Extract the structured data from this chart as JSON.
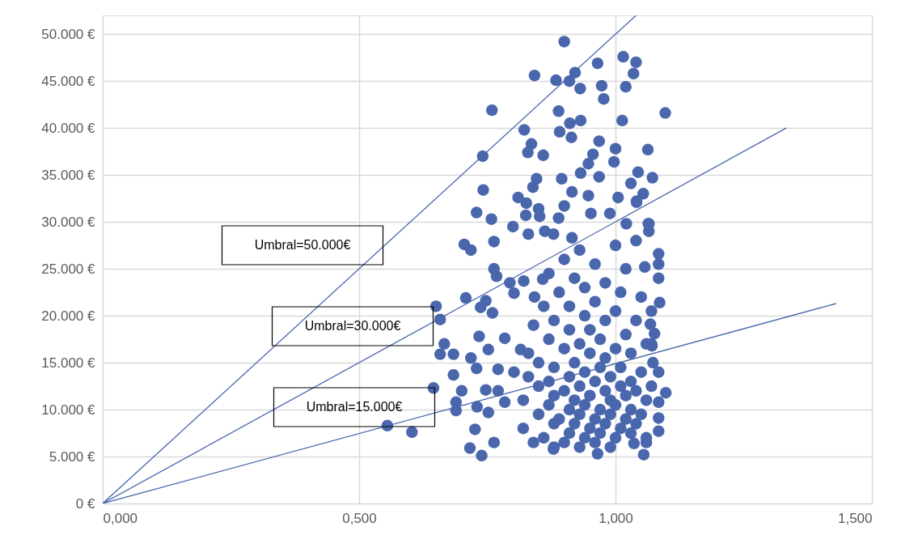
{
  "chart_data": {
    "type": "scatter",
    "xlim": [
      0,
      1.5
    ],
    "ylim": [
      0,
      52000
    ],
    "xticks": [
      {
        "value": 0,
        "label": "0,000"
      },
      {
        "value": 0.5,
        "label": "0,500"
      },
      {
        "value": 1,
        "label": "1,000"
      },
      {
        "value": 1.5,
        "label": "1,500"
      }
    ],
    "yticks": [
      {
        "value": 0,
        "label": "0 €"
      },
      {
        "value": 5000,
        "label": "5.000 €"
      },
      {
        "value": 10000,
        "label": "10.000 €"
      },
      {
        "value": 15000,
        "label": "15.000 €"
      },
      {
        "value": 20000,
        "label": "20.000 €"
      },
      {
        "value": 25000,
        "label": "25.000 €"
      },
      {
        "value": 30000,
        "label": "30.000 €"
      },
      {
        "value": 35000,
        "label": "35.000 €"
      },
      {
        "value": 40000,
        "label": "40.000 €"
      },
      {
        "value": 45000,
        "label": "45.000 €"
      },
      {
        "value": 50000,
        "label": "50.000 €"
      }
    ],
    "grid": true,
    "series": [
      {
        "color": "#4a67ad",
        "marker": "circle",
        "x": [
          0.9,
          0.842,
          0.884,
          0.921,
          0.91,
          0.931,
          0.965,
          1.015,
          1.04,
          1.035,
          1.02,
          0.973,
          0.977,
          0.759,
          1.097,
          0.889,
          0.911,
          0.932,
          1.013,
          0.891,
          0.914,
          0.822,
          0.836,
          0.829,
          0.859,
          0.741,
          0.968,
          1.0,
          0.997,
          1.063,
          0.956,
          0.947,
          0.932,
          1.044,
          1.072,
          0.846,
          0.895,
          0.742,
          0.839,
          0.915,
          0.968,
          0.947,
          1.03,
          1.054,
          0.81,
          0.826,
          0.729,
          0.758,
          0.825,
          0.85,
          0.9,
          0.852,
          1.005,
          1.041,
          1.064,
          0.8,
          0.705,
          0.718,
          0.763,
          0.83,
          0.862,
          0.879,
          0.915,
          0.889,
          0.989,
          0.952,
          1.021,
          0.65,
          0.658,
          0.666,
          0.658,
          0.645,
          0.555,
          0.603,
          0.708,
          0.734,
          0.684,
          0.729,
          0.718,
          0.684,
          0.7,
          0.747,
          0.689,
          0.689,
          0.73,
          0.752,
          0.726,
          0.716,
          0.739,
          0.763,
          0.737,
          0.76,
          0.747,
          0.763,
          0.768,
          0.794,
          0.802,
          0.784,
          0.752,
          0.815,
          0.771,
          0.784,
          0.802,
          0.771,
          0.821,
          0.842,
          0.858,
          1.084,
          1.086,
          1.068,
          1.071,
          1.084,
          1.098,
          1.084,
          1.055,
          0.965,
          0.879,
          1.084,
          1.057,
          1.041,
          1.065,
          1.065,
          1.084,
          1.076,
          1.07,
          1.073,
          1.084,
          1.084,
          1.06,
          1.036,
          0.82,
          0.82,
          0.83,
          0.83,
          0.84,
          0.84,
          0.85,
          0.85,
          0.85,
          0.86,
          0.86,
          0.87,
          0.87,
          0.87,
          0.87,
          0.88,
          0.88,
          0.88,
          0.88,
          0.88,
          0.89,
          0.89,
          0.9,
          0.9,
          0.9,
          0.9,
          0.91,
          0.91,
          0.91,
          0.91,
          0.91,
          0.92,
          0.92,
          0.92,
          0.92,
          0.93,
          0.93,
          0.93,
          0.93,
          0.93,
          0.94,
          0.94,
          0.94,
          0.94,
          0.94,
          0.95,
          0.95,
          0.95,
          0.95,
          0.96,
          0.96,
          0.96,
          0.96,
          0.96,
          0.97,
          0.97,
          0.97,
          0.97,
          0.98,
          0.98,
          0.98,
          0.98,
          0.98,
          0.99,
          0.99,
          0.99,
          0.99,
          1.0,
          1.0,
          1.0,
          1.0,
          1.0,
          1.01,
          1.01,
          1.01,
          1.01,
          1.02,
          1.02,
          1.02,
          1.02,
          1.03,
          1.03,
          1.03,
          1.03,
          1.04,
          1.04,
          1.04,
          1.04,
          1.05,
          1.05,
          1.05,
          1.06,
          1.06,
          1.06,
          1.07,
          1.07
        ],
        "values": [
          49200,
          45600,
          45100,
          45900,
          45000,
          44200,
          46900,
          47600,
          47000,
          45800,
          44400,
          44500,
          43100,
          41900,
          41600,
          41800,
          40500,
          40800,
          40800,
          39600,
          39000,
          39800,
          38300,
          37400,
          37100,
          37000,
          38600,
          37800,
          36400,
          37700,
          37200,
          36200,
          35200,
          35300,
          34700,
          34600,
          34600,
          33400,
          33700,
          33200,
          34800,
          32800,
          34100,
          33000,
          32600,
          32000,
          31000,
          30300,
          30700,
          31400,
          31700,
          30600,
          32600,
          32200,
          29800,
          29500,
          27600,
          27000,
          27900,
          28700,
          29000,
          28700,
          28300,
          30400,
          30900,
          30900,
          29800,
          21000,
          19600,
          17000,
          15900,
          12300,
          8300,
          7600,
          21900,
          17800,
          15900,
          14400,
          15500,
          13700,
          12000,
          12100,
          10800,
          9900,
          10300,
          9700,
          7900,
          5900,
          5100,
          6500,
          20900,
          20300,
          21600,
          25000,
          24200,
          23500,
          22400,
          17600,
          16400,
          16400,
          14300,
          10800,
          14000,
          12000,
          23700,
          22000,
          23900,
          24000,
          21400,
          19100,
          16800,
          14000,
          11800,
          7700,
          5200,
          5300,
          5800,
          26600,
          25200,
          32100,
          29800,
          29000,
          25500,
          18100,
          17000,
          15000,
          10800,
          9100,
          6500,
          6400,
          8000,
          11000,
          13500,
          16000,
          19000,
          6500,
          9500,
          12500,
          15000,
          21000,
          7000,
          10500,
          13000,
          17500,
          24500,
          6000,
          8500,
          11500,
          14500,
          19500,
          22500,
          9000,
          6500,
          12000,
          16500,
          26000,
          7500,
          10000,
          13500,
          18500,
          21000,
          8500,
          11000,
          15000,
          24000,
          6000,
          9500,
          12500,
          17000,
          27000,
          7000,
          10500,
          14000,
          20000,
          23000,
          8000,
          11500,
          16000,
          18500,
          6500,
          9000,
          13000,
          21500,
          25500,
          7500,
          10000,
          14500,
          17500,
          8500,
          12000,
          15500,
          19500,
          23500,
          6000,
          9500,
          11000,
          13500,
          7000,
          10500,
          16500,
          20500,
          27500,
          8000,
          12500,
          14500,
          22500,
          9000,
          11500,
          18000,
          25000,
          7500,
          10000,
          13000,
          16000,
          8500,
          12000,
          19500,
          28000,
          9500,
          14000,
          22000,
          11000,
          17000,
          7000,
          12500,
          20500
        ]
      },
      {
        "type": "line",
        "marker": "none",
        "color": "#4a67ad",
        "x": [
          0,
          1.04
        ],
        "values": [
          0,
          52000
        ]
      },
      {
        "type": "line",
        "marker": "none",
        "color": "#4a67ad",
        "x": [
          0,
          1.333
        ],
        "values": [
          0,
          40000
        ]
      },
      {
        "type": "line",
        "marker": "none",
        "color": "#4a67ad",
        "x": [
          0,
          1.43
        ],
        "values": [
          0,
          21300
        ]
      }
    ],
    "annotations": [
      "Umbral=50.000€",
      "Umbral=30.000€",
      "Umbral=15.000€"
    ]
  }
}
